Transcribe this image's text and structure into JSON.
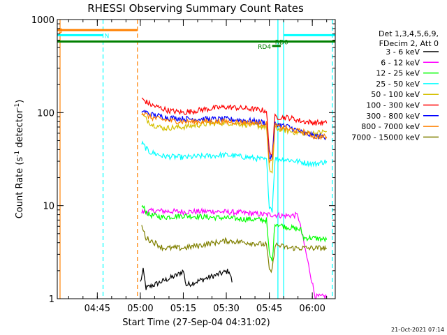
{
  "chart_data": {
    "type": "line",
    "title": "RHESSI Observing Summary Count Rates",
    "xlabel": "Start Time (27-Sep-04 04:31:02)",
    "ylabel": "Count Rate (s",
    "ylabel_sup": "-1",
    "ylabel_tail": " detector",
    "ylabel_sup2": "-1",
    "ylabel_close": ")",
    "yscale": "log",
    "ylim": [
      1,
      1000
    ],
    "y_ticks": [
      {
        "value": 1,
        "label": "1"
      },
      {
        "value": 10,
        "label": "10"
      },
      {
        "value": 100,
        "label": "100"
      },
      {
        "value": 1000,
        "label": "1000"
      }
    ],
    "xlim": [
      "04:31:02",
      "06:08:00"
    ],
    "x_ticks": [
      {
        "time": "04:45",
        "label": "04:45"
      },
      {
        "time": "05:00",
        "label": "05:00"
      },
      {
        "time": "05:15",
        "label": "05:15"
      },
      {
        "time": "05:30",
        "label": "05:30"
      },
      {
        "time": "05:45",
        "label": "05:45"
      },
      {
        "time": "06:00",
        "label": "06:00"
      }
    ],
    "legend_header": [
      "Det 1,3,4,5,6,9,",
      "FDecim 2, Att 0"
    ],
    "legend_position": "right",
    "series": [
      {
        "name": "3 - 6 keV",
        "color": "#000000",
        "points": [
          [
            "05:00:00",
            1.5
          ],
          [
            "05:01:00",
            2
          ],
          [
            "05:02:00",
            1.3
          ],
          [
            "05:13:00",
            1.8
          ],
          [
            "05:15:00",
            2
          ],
          [
            "05:16:00",
            1.4
          ],
          [
            "05:31:00",
            2
          ],
          [
            "05:32:00",
            1.5
          ]
        ]
      },
      {
        "name": "6 - 12 keV",
        "color": "#ff00ff",
        "points": [
          [
            "05:00:30",
            8.5
          ],
          [
            "05:05:00",
            8.8
          ],
          [
            "05:15:00",
            8.6
          ],
          [
            "05:25:00",
            8.7
          ],
          [
            "05:35:00",
            8.4
          ],
          [
            "05:44:00",
            8
          ],
          [
            "05:46:00",
            8
          ],
          [
            "05:50:00",
            7.8
          ],
          [
            "05:55:00",
            7.9
          ],
          [
            "06:01:00",
            1.05
          ],
          [
            "06:05:00",
            1.05
          ]
        ]
      },
      {
        "name": "12 - 25 keV",
        "color": "#00ff00",
        "points": [
          [
            "05:00:30",
            10
          ],
          [
            "05:03:00",
            8
          ],
          [
            "05:08:00",
            7.5
          ],
          [
            "05:15:00",
            7.8
          ],
          [
            "05:25:00",
            7.5
          ],
          [
            "05:35:00",
            7.2
          ],
          [
            "05:44:00",
            7
          ],
          [
            "05:45:00",
            3
          ],
          [
            "05:46:00",
            2.5
          ],
          [
            "05:47:00",
            6.5
          ],
          [
            "05:50:00",
            6
          ],
          [
            "05:56:00",
            5.5
          ],
          [
            "05:57:00",
            4.5
          ],
          [
            "06:00:00",
            4.5
          ],
          [
            "06:05:00",
            4.3
          ]
        ]
      },
      {
        "name": "25 - 50 keV",
        "color": "#00ffff",
        "points": [
          [
            "05:00:30",
            47
          ],
          [
            "05:03:00",
            38
          ],
          [
            "05:08:00",
            34
          ],
          [
            "05:15:00",
            33
          ],
          [
            "05:22:00",
            34
          ],
          [
            "05:30:00",
            35
          ],
          [
            "05:38:00",
            33
          ],
          [
            "05:44:00",
            31
          ],
          [
            "05:45:00",
            10
          ],
          [
            "05:46:00",
            9
          ],
          [
            "05:47:00",
            32
          ],
          [
            "05:52:00",
            31
          ],
          [
            "05:57:00",
            29
          ],
          [
            "06:01:00",
            28
          ],
          [
            "06:05:00",
            30
          ]
        ]
      },
      {
        "name": "50 - 100 keV",
        "color": "#d4c000",
        "points": [
          [
            "05:00:30",
            95
          ],
          [
            "05:04:00",
            75
          ],
          [
            "05:08:00",
            68
          ],
          [
            "05:15:00",
            70
          ],
          [
            "05:22:00",
            75
          ],
          [
            "05:30:00",
            78
          ],
          [
            "05:38:00",
            74
          ],
          [
            "05:44:00",
            70
          ],
          [
            "05:45:00",
            24
          ],
          [
            "05:46:00",
            23
          ],
          [
            "05:47:00",
            68
          ],
          [
            "05:52:00",
            63
          ],
          [
            "05:57:00",
            60
          ],
          [
            "06:01:00",
            60
          ],
          [
            "06:05:00",
            63
          ]
        ]
      },
      {
        "name": "100 - 300 keV",
        "color": "#ff0000",
        "points": [
          [
            "05:00:30",
            140
          ],
          [
            "05:04:00",
            120
          ],
          [
            "05:10:00",
            105
          ],
          [
            "05:15:00",
            100
          ],
          [
            "05:22:00",
            108
          ],
          [
            "05:30:00",
            115
          ],
          [
            "05:38:00",
            110
          ],
          [
            "05:44:00",
            105
          ],
          [
            "05:45:00",
            38
          ],
          [
            "05:46:00",
            36
          ],
          [
            "05:47:00",
            90
          ],
          [
            "05:52:00",
            88
          ],
          [
            "05:57:00",
            80
          ],
          [
            "06:01:00",
            78
          ],
          [
            "06:05:00",
            77
          ]
        ]
      },
      {
        "name": "300 - 800 keV",
        "color": "#0000ff",
        "points": [
          [
            "05:00:30",
            105
          ],
          [
            "05:04:00",
            95
          ],
          [
            "05:10:00",
            88
          ],
          [
            "05:15:00",
            86
          ],
          [
            "05:22:00",
            85
          ],
          [
            "05:30:00",
            85
          ],
          [
            "05:38:00",
            82
          ],
          [
            "05:44:00",
            78
          ],
          [
            "05:45:00",
            33
          ],
          [
            "05:46:00",
            33
          ],
          [
            "05:47:00",
            76
          ],
          [
            "05:52:00",
            70
          ],
          [
            "05:57:00",
            60
          ],
          [
            "06:01:00",
            56
          ],
          [
            "06:05:00",
            55
          ]
        ]
      },
      {
        "name": "800 - 7000 keV",
        "color": "#ff8000",
        "points": [
          [
            "05:00:30",
            100
          ],
          [
            "05:04:00",
            88
          ],
          [
            "05:10:00",
            82
          ],
          [
            "05:15:00",
            80
          ],
          [
            "05:22:00",
            80
          ],
          [
            "05:30:00",
            80
          ],
          [
            "05:38:00",
            78
          ],
          [
            "05:44:00",
            76
          ],
          [
            "05:45:00",
            30
          ],
          [
            "05:46:00",
            30
          ],
          [
            "05:47:00",
            72
          ],
          [
            "05:52:00",
            66
          ],
          [
            "05:57:00",
            62
          ],
          [
            "06:01:00",
            55
          ],
          [
            "06:05:00",
            55
          ]
        ]
      },
      {
        "name": "7000 - 15000 keV",
        "color": "#808000",
        "points": [
          [
            "05:00:30",
            6
          ],
          [
            "05:02:00",
            4.5
          ],
          [
            "05:05:00",
            4
          ],
          [
            "05:08:00",
            3.5
          ],
          [
            "05:15:00",
            3.5
          ],
          [
            "05:22:00",
            3.8
          ],
          [
            "05:30:00",
            4.2
          ],
          [
            "05:38:00",
            4
          ],
          [
            "05:44:00",
            3.8
          ],
          [
            "05:45:00",
            2
          ],
          [
            "05:46:00",
            2
          ],
          [
            "05:47:00",
            3.8
          ],
          [
            "05:52:00",
            3.5
          ],
          [
            "05:57:00",
            3.5
          ],
          [
            "06:01:00",
            3.5
          ],
          [
            "06:05:00",
            3.5
          ]
        ]
      }
    ],
    "state_bars": [
      {
        "label": "S",
        "color": "#ff8000",
        "y": 770,
        "x_start": "04:31:02",
        "x_end": "04:59:00",
        "label_x": "04:31:30"
      },
      {
        "label": "N",
        "color": "#00ffff",
        "y": 680,
        "x_start": "04:31:02",
        "x_end": "04:47:00",
        "label_x": "04:47:30"
      },
      {
        "label": "",
        "color": "#00ffff",
        "y": 680,
        "x_start": "05:50:00",
        "x_end": "06:08:00",
        "label_x": ""
      },
      {
        "label": "RD0",
        "color": "#008000",
        "y": 580,
        "x_start": "04:31:02",
        "x_end": "06:08:00",
        "label_x": "05:47:00"
      },
      {
        "label": "RD4",
        "color": "#008000",
        "y": 520,
        "x_start": "05:46:00",
        "x_end": "05:49:00",
        "label_x": "05:41:00"
      }
    ],
    "vertical_lines": [
      {
        "time": "04:32:00",
        "color": "#ff8000",
        "style": "solid"
      },
      {
        "time": "04:47:00",
        "color": "#00ffff",
        "style": "dashed"
      },
      {
        "time": "04:59:00",
        "color": "#ff8000",
        "style": "dashed"
      },
      {
        "time": "05:48:00",
        "color": "#00ffff",
        "style": "solid"
      },
      {
        "time": "05:50:00",
        "color": "#00ffff",
        "style": "solid"
      },
      {
        "time": "06:07:00",
        "color": "#00ffff",
        "style": "dashed"
      }
    ],
    "footer_date": "21-Oct-2021 07:14"
  }
}
